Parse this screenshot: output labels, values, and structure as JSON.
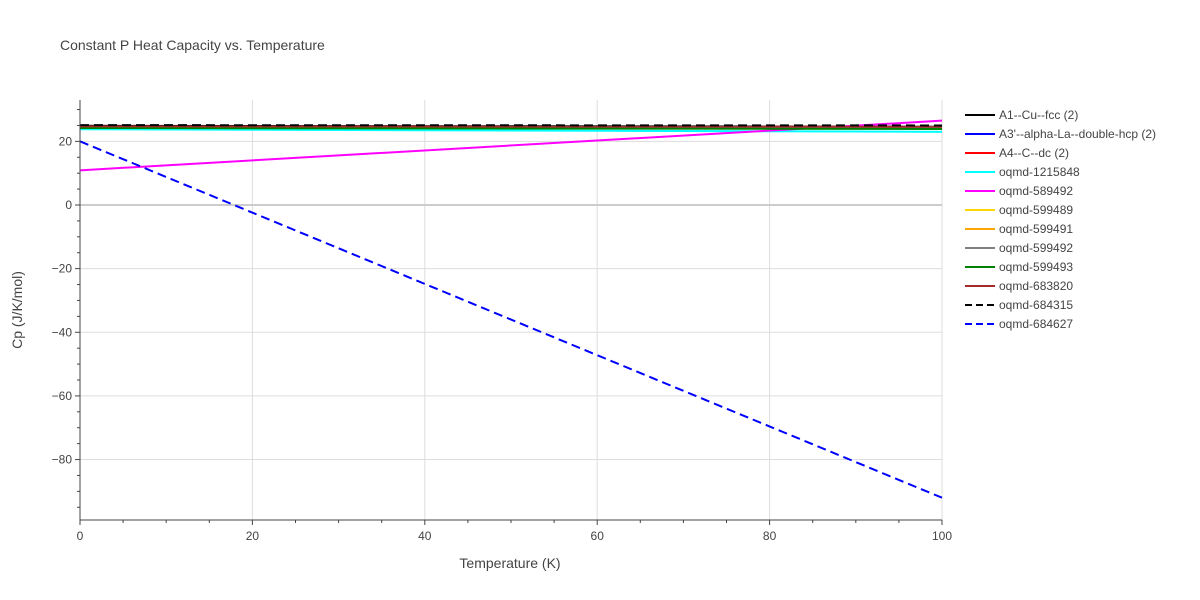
{
  "chart_data": {
    "type": "line",
    "title": "Constant P Heat Capacity vs. Temperature",
    "xlabel": "Temperature (K)",
    "ylabel": "Cp (J/K/mol)",
    "xlim": [
      0,
      100
    ],
    "ylim": [
      -99,
      33
    ],
    "xticks": [
      0,
      20,
      40,
      60,
      80,
      100
    ],
    "yticks": [
      20,
      0,
      -20,
      -40,
      -60,
      -80
    ],
    "xtick_labels": [
      "0",
      "20",
      "40",
      "60",
      "80",
      "100"
    ],
    "ytick_labels": [
      "20",
      "0",
      "−20",
      "−40",
      "−60",
      "−80"
    ],
    "grid": true,
    "legend_position": "right",
    "series": [
      {
        "name": "A1--Cu--fcc (2)",
        "color": "#000000",
        "dash": "solid",
        "x": [
          0,
          100
        ],
        "y": [
          24.9,
          24.6
        ]
      },
      {
        "name": "A3'--alpha-La--double-hcp (2)",
        "color": "#0000ff",
        "dash": "solid",
        "x": [
          0,
          100
        ],
        "y": [
          24.6,
          24.4
        ]
      },
      {
        "name": "A4--C--dc (2)",
        "color": "#ff0000",
        "dash": "solid",
        "x": [
          0,
          100
        ],
        "y": [
          24.5,
          24.4
        ]
      },
      {
        "name": "oqmd-1215848",
        "color": "#00ffff",
        "dash": "solid",
        "x": [
          0,
          50,
          100
        ],
        "y": [
          23.8,
          23.4,
          23.0
        ]
      },
      {
        "name": "oqmd-589492",
        "color": "#ff00ff",
        "dash": "solid",
        "x": [
          0,
          100
        ],
        "y": [
          10.9,
          26.5
        ]
      },
      {
        "name": "oqmd-599489",
        "color": "#ffd700",
        "dash": "solid",
        "x": [
          0,
          100
        ],
        "y": [
          24.4,
          24.3
        ]
      },
      {
        "name": "oqmd-599491",
        "color": "#ffa500",
        "dash": "solid",
        "x": [
          0,
          100
        ],
        "y": [
          24.4,
          24.4
        ]
      },
      {
        "name": "oqmd-599492",
        "color": "#808080",
        "dash": "solid",
        "x": [
          0,
          100
        ],
        "y": [
          24.3,
          24.2
        ]
      },
      {
        "name": "oqmd-599493",
        "color": "#008000",
        "dash": "solid",
        "x": [
          0,
          100
        ],
        "y": [
          24.2,
          23.9
        ]
      },
      {
        "name": "oqmd-683820",
        "color": "#a52a2a",
        "dash": "solid",
        "x": [
          0,
          100
        ],
        "y": [
          24.7,
          24.6
        ]
      },
      {
        "name": "oqmd-684315",
        "color": "#000000",
        "dash": "dash",
        "x": [
          0,
          100
        ],
        "y": [
          25.1,
          25.0
        ]
      },
      {
        "name": "oqmd-684627",
        "color": "#0000ff",
        "dash": "dash",
        "x": [
          0,
          100
        ],
        "y": [
          20.0,
          -92.0
        ]
      }
    ]
  }
}
